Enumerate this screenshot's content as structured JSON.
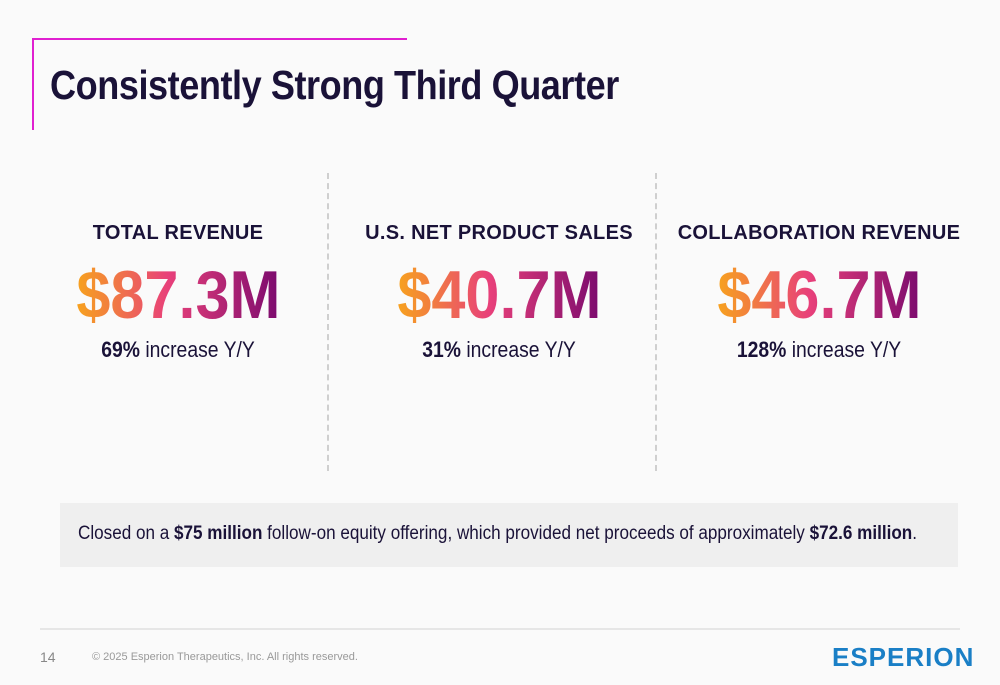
{
  "title": "Consistently Strong Third Quarter",
  "metrics": [
    {
      "label": "TOTAL REVENUE",
      "value": "$87.3M",
      "pct": "69%",
      "suffix": " increase Y/Y"
    },
    {
      "label": "U.S. NET PRODUCT SALES",
      "value": "$40.7M",
      "pct": "31%",
      "suffix": " increase Y/Y"
    },
    {
      "label": "COLLABORATION REVENUE",
      "value": "$46.7M",
      "pct": "128%",
      "suffix": " increase Y/Y"
    }
  ],
  "note": {
    "t1": "Closed on a ",
    "b1": "$75 million",
    "t2": " follow-on equity offering, which provided net proceeds of approximately ",
    "b2": "$72.6 million",
    "t3": "."
  },
  "footer": {
    "page": "14",
    "copyright": "© 2025 Esperion Therapeutics, Inc. All rights reserved.",
    "logo": "ESPERION"
  },
  "colors": {
    "accent": "#e020d0",
    "title": "#1a1238",
    "logo": "#1a7fc6"
  }
}
